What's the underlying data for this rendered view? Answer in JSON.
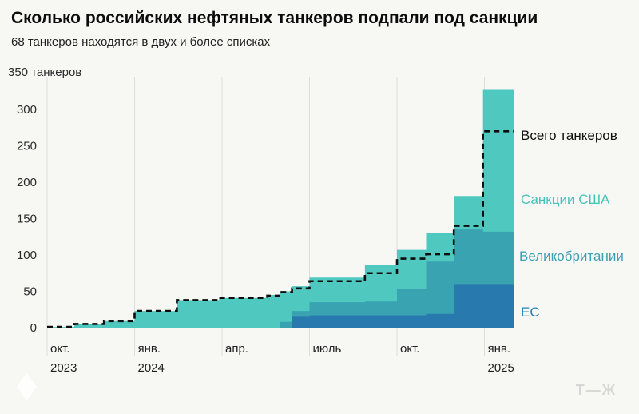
{
  "chart_data": {
    "type": "area",
    "title": "Сколько российских нефтяных танкеров подпали под санкции",
    "subtitle": "68 танкеров находятся в двух и более списках",
    "unit_label": "350 танкеров",
    "ylim": [
      0,
      350
    ],
    "y_ticks": [
      0,
      50,
      100,
      150,
      200,
      250,
      300
    ],
    "x_range_months": [
      0,
      16
    ],
    "x_ticks": [
      {
        "label": "окт.",
        "year": "2023",
        "month": 0
      },
      {
        "label": "янв.",
        "year": "2024",
        "month": 3
      },
      {
        "label": "апр.",
        "year": "",
        "month": 6
      },
      {
        "label": "июль",
        "year": "",
        "month": 9
      },
      {
        "label": "окт.",
        "year": "",
        "month": 12
      },
      {
        "label": "янв.",
        "year": "2025",
        "month": 15
      }
    ],
    "grid": "vertical-only",
    "series": [
      {
        "name": "Санкции США",
        "role": "stacked-top-cumulative",
        "color": "#4fc8bf",
        "points": [
          [
            0,
            1
          ],
          [
            0.93,
            5
          ],
          [
            1.95,
            9
          ],
          [
            3,
            23
          ],
          [
            4.45,
            38
          ],
          [
            5.9,
            41
          ],
          [
            7.55,
            45
          ],
          [
            8,
            50
          ],
          [
            8.4,
            57
          ],
          [
            9,
            69
          ],
          [
            10.9,
            86
          ],
          [
            12,
            107
          ],
          [
            13,
            130
          ],
          [
            13.95,
            181
          ],
          [
            14.95,
            328
          ]
        ]
      },
      {
        "name": "Великобритании",
        "role": "stacked-middle-cumulative",
        "color": "#39a3b2",
        "points": [
          [
            0,
            0
          ],
          [
            8,
            8
          ],
          [
            8.4,
            23
          ],
          [
            9,
            35
          ],
          [
            10.9,
            36
          ],
          [
            12,
            53
          ],
          [
            13,
            91
          ],
          [
            13.95,
            135
          ],
          [
            14.95,
            132
          ]
        ]
      },
      {
        "name": "ЕС",
        "role": "stacked-bottom",
        "color": "#2879ae",
        "points": [
          [
            0,
            0
          ],
          [
            8.4,
            15
          ],
          [
            9,
            17
          ],
          [
            13,
            19
          ],
          [
            13.95,
            60
          ],
          [
            14.95,
            60
          ]
        ]
      }
    ],
    "total_line": {
      "name": "Всего танкеров",
      "style": "dashed",
      "color": "#0d0d0d",
      "points": [
        [
          0,
          1
        ],
        [
          0.93,
          5
        ],
        [
          1.95,
          9
        ],
        [
          3,
          23
        ],
        [
          4.45,
          38
        ],
        [
          5.9,
          41
        ],
        [
          7.55,
          44
        ],
        [
          8,
          49
        ],
        [
          8.4,
          54
        ],
        [
          9,
          64
        ],
        [
          10.9,
          75
        ],
        [
          12,
          95
        ],
        [
          13,
          101
        ],
        [
          13.95,
          140
        ],
        [
          14.95,
          270
        ]
      ]
    },
    "legend": [
      {
        "label": "Всего танкеров",
        "color": "#111111"
      },
      {
        "label": "Санкции США",
        "color": "#45c4ba"
      },
      {
        "label": "Великобритании",
        "color": "#3a9fb3"
      },
      {
        "label": "ЕС",
        "color": "#2f80b2"
      }
    ],
    "legend_position": "right"
  },
  "watermark": {
    "brand": "Т—Ж",
    "icon": "diamond-logo"
  }
}
